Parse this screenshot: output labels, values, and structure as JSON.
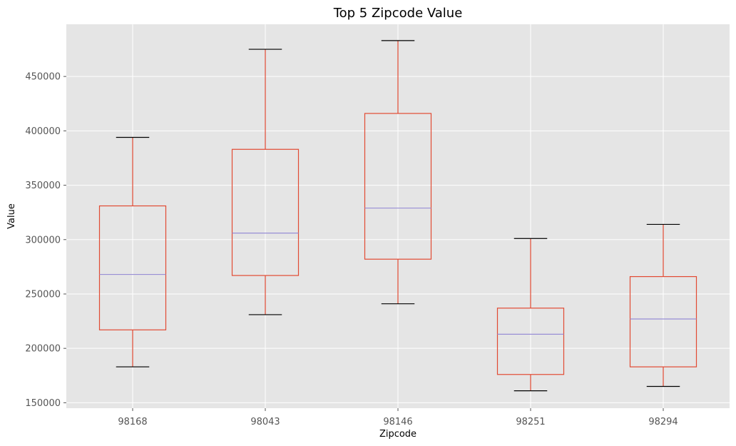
{
  "chart_data": {
    "type": "box",
    "title": "Top 5 Zipcode Value",
    "xlabel": "Zipcode",
    "ylabel": "Value",
    "ylim": [
      145000,
      498000
    ],
    "yticks": [
      150000,
      200000,
      250000,
      300000,
      350000,
      400000,
      450000
    ],
    "grid": true,
    "colors": {
      "background": "#e5e5e5",
      "grid": "#ffffff",
      "box": "#e24a33",
      "median": "#988ed5",
      "cap": "#000000"
    },
    "categories": [
      "98168",
      "98043",
      "98146",
      "98251",
      "98294"
    ],
    "boxes": [
      {
        "category": "98168",
        "whisker_low": 183000,
        "q1": 217000,
        "median": 268000,
        "q3": 331000,
        "whisker_high": 394000
      },
      {
        "category": "98043",
        "whisker_low": 231000,
        "q1": 267000,
        "median": 306000,
        "q3": 383000,
        "whisker_high": 475000
      },
      {
        "category": "98146",
        "whisker_low": 241000,
        "q1": 282000,
        "median": 329000,
        "q3": 416000,
        "whisker_high": 483000
      },
      {
        "category": "98251",
        "whisker_low": 161000,
        "q1": 176000,
        "median": 213000,
        "q3": 237000,
        "whisker_high": 301000
      },
      {
        "category": "98294",
        "whisker_low": 165000,
        "q1": 183000,
        "median": 227000,
        "q3": 266000,
        "whisker_high": 314000
      }
    ]
  }
}
